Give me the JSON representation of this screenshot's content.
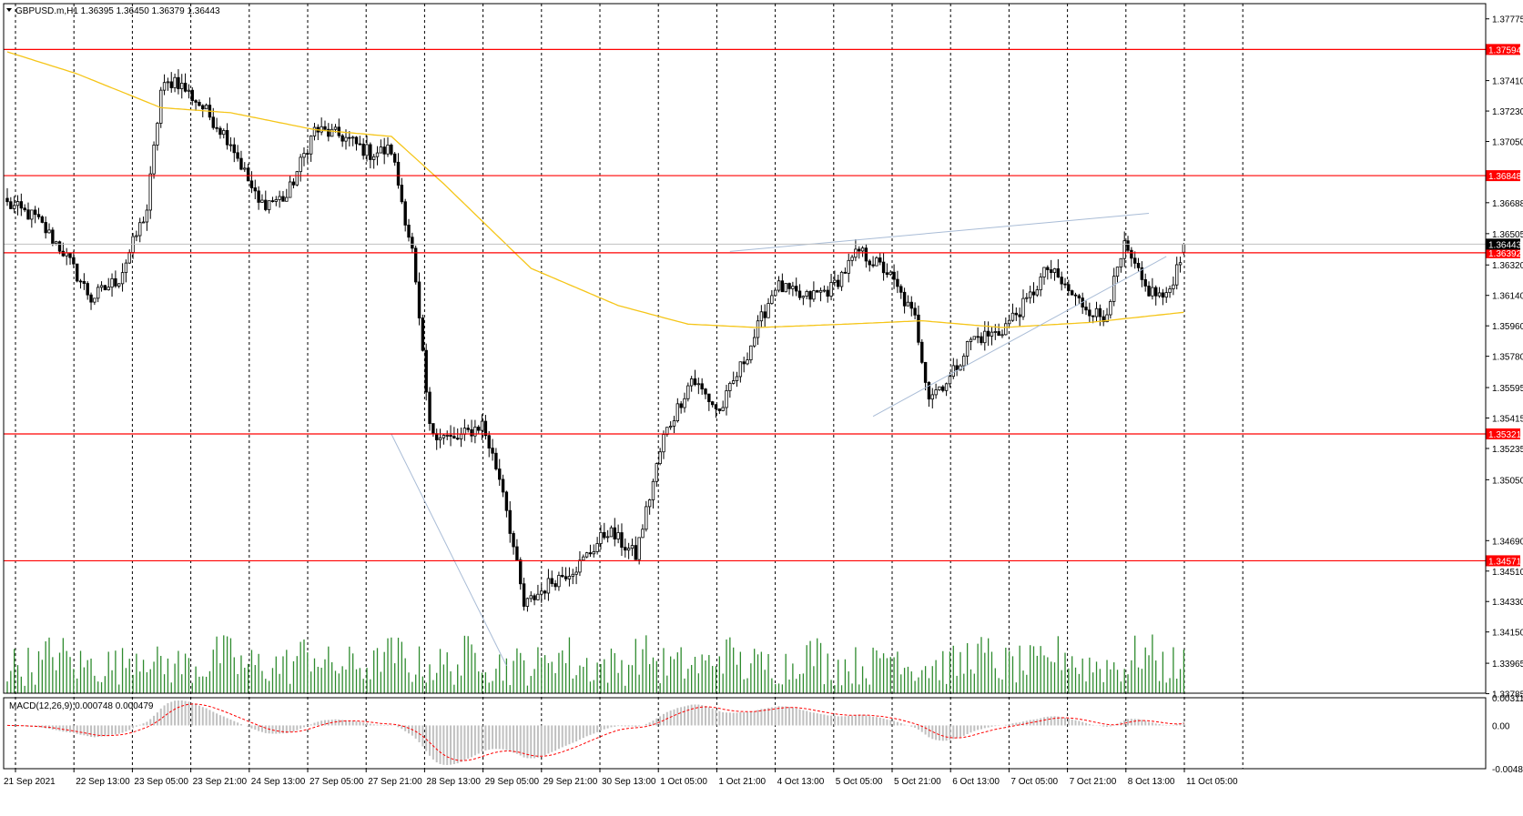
{
  "header": {
    "symbol_line": "GBPUSD.m,H1  1.36395 1.36450 1.36379 1.36443",
    "macd_line": "MACD(12,26,9) 0.000748 0.000479"
  },
  "colors": {
    "bull": "#000000",
    "bear": "#000000",
    "ma": "#f5c518",
    "level": "#ff0000",
    "trend": "#a9bcd6",
    "volume": "#2e8b2e",
    "macd_hist": "#c0c0c0",
    "macd_signal": "#ff0000",
    "price_tag": "#ff0000",
    "current_tag": "#000000"
  },
  "chart_data": {
    "type": "candlestick",
    "symbol": "GBPUSD.m",
    "timeframe": "H1",
    "ohlc_last": {
      "open": 1.36395,
      "high": 1.3645,
      "low": 1.36379,
      "close": 1.36443
    },
    "price_axis": {
      "range": [
        1.33788,
        1.37865
      ],
      "ticks": [
        "1.37775",
        "1.37410",
        "1.37230",
        "1.37050",
        "1.36688",
        "1.36505",
        "1.36320",
        "1.36140",
        "1.35960",
        "1.35780",
        "1.35595",
        "1.35415",
        "1.35235",
        "1.35050",
        "1.34690",
        "1.34510",
        "1.34330",
        "1.34150",
        "1.33965",
        "1.33785"
      ]
    },
    "time_axis": {
      "labels": [
        "21 Sep 2021",
        "22 Sep 13:00",
        "23 Sep 05:00",
        "23 Sep 21:00",
        "24 Sep 13:00",
        "27 Sep 05:00",
        "27 Sep 21:00",
        "28 Sep 13:00",
        "29 Sep 05:00",
        "29 Sep 21:00",
        "30 Sep 13:00",
        "1 Oct 05:00",
        "1 Oct 21:00",
        "4 Oct 13:00",
        "5 Oct 05:00",
        "5 Oct 21:00",
        "6 Oct 13:00",
        "7 Oct 05:00",
        "7 Oct 21:00",
        "8 Oct 13:00",
        "11 Oct 05:00"
      ]
    },
    "levels": [
      {
        "price": 1.37594,
        "label": "1.37594"
      },
      {
        "price": 1.36848,
        "label": "1.36848"
      },
      {
        "price": 1.36392,
        "label": "1.36392"
      },
      {
        "price": 1.35321,
        "label": "1.35321"
      },
      {
        "price": 1.34571,
        "label": "1.34571"
      }
    ],
    "current_price": {
      "price": 1.36443,
      "label": "1.36443"
    },
    "path_points": [
      {
        "i": 0,
        "p": 1.3668
      },
      {
        "i": 8,
        "p": 1.366
      },
      {
        "i": 16,
        "p": 1.364
      },
      {
        "i": 24,
        "p": 1.3612
      },
      {
        "i": 32,
        "p": 1.3624
      },
      {
        "i": 40,
        "p": 1.3665
      },
      {
        "i": 44,
        "p": 1.3735
      },
      {
        "i": 48,
        "p": 1.3742
      },
      {
        "i": 56,
        "p": 1.3725
      },
      {
        "i": 64,
        "p": 1.3705
      },
      {
        "i": 72,
        "p": 1.3668
      },
      {
        "i": 80,
        "p": 1.3672
      },
      {
        "i": 88,
        "p": 1.3712
      },
      {
        "i": 96,
        "p": 1.3708
      },
      {
        "i": 104,
        "p": 1.3698
      },
      {
        "i": 110,
        "p": 1.37
      },
      {
        "i": 116,
        "p": 1.364
      },
      {
        "i": 121,
        "p": 1.3535
      },
      {
        "i": 128,
        "p": 1.3528
      },
      {
        "i": 136,
        "p": 1.3538
      },
      {
        "i": 142,
        "p": 1.35
      },
      {
        "i": 148,
        "p": 1.343
      },
      {
        "i": 156,
        "p": 1.3445
      },
      {
        "i": 164,
        "p": 1.3455
      },
      {
        "i": 172,
        "p": 1.3475
      },
      {
        "i": 180,
        "p": 1.346
      },
      {
        "i": 188,
        "p": 1.353
      },
      {
        "i": 196,
        "p": 1.3565
      },
      {
        "i": 204,
        "p": 1.3545
      },
      {
        "i": 212,
        "p": 1.358
      },
      {
        "i": 220,
        "p": 1.362
      },
      {
        "i": 228,
        "p": 1.3612
      },
      {
        "i": 236,
        "p": 1.3618
      },
      {
        "i": 244,
        "p": 1.364
      },
      {
        "i": 252,
        "p": 1.3628
      },
      {
        "i": 260,
        "p": 1.36
      },
      {
        "i": 264,
        "p": 1.3555
      },
      {
        "i": 270,
        "p": 1.3565
      },
      {
        "i": 276,
        "p": 1.3588
      },
      {
        "i": 284,
        "p": 1.3592
      },
      {
        "i": 292,
        "p": 1.361
      },
      {
        "i": 298,
        "p": 1.363
      },
      {
        "i": 306,
        "p": 1.3612
      },
      {
        "i": 314,
        "p": 1.36
      },
      {
        "i": 320,
        "p": 1.3642
      },
      {
        "i": 326,
        "p": 1.3618
      },
      {
        "i": 332,
        "p": 1.3612
      },
      {
        "i": 337,
        "p": 1.3643
      }
    ],
    "moving_average": [
      {
        "i": 0,
        "p": 1.3758
      },
      {
        "i": 20,
        "p": 1.3745
      },
      {
        "i": 44,
        "p": 1.3725
      },
      {
        "i": 64,
        "p": 1.3722
      },
      {
        "i": 88,
        "p": 1.3712
      },
      {
        "i": 110,
        "p": 1.3708
      },
      {
        "i": 125,
        "p": 1.368
      },
      {
        "i": 150,
        "p": 1.363
      },
      {
        "i": 175,
        "p": 1.3608
      },
      {
        "i": 195,
        "p": 1.3597
      },
      {
        "i": 215,
        "p": 1.3595
      },
      {
        "i": 240,
        "p": 1.3597
      },
      {
        "i": 262,
        "p": 1.3599
      },
      {
        "i": 285,
        "p": 1.3595
      },
      {
        "i": 310,
        "p": 1.3598
      },
      {
        "i": 337,
        "p": 1.3604
      }
    ],
    "bars_count": 338
  }
}
